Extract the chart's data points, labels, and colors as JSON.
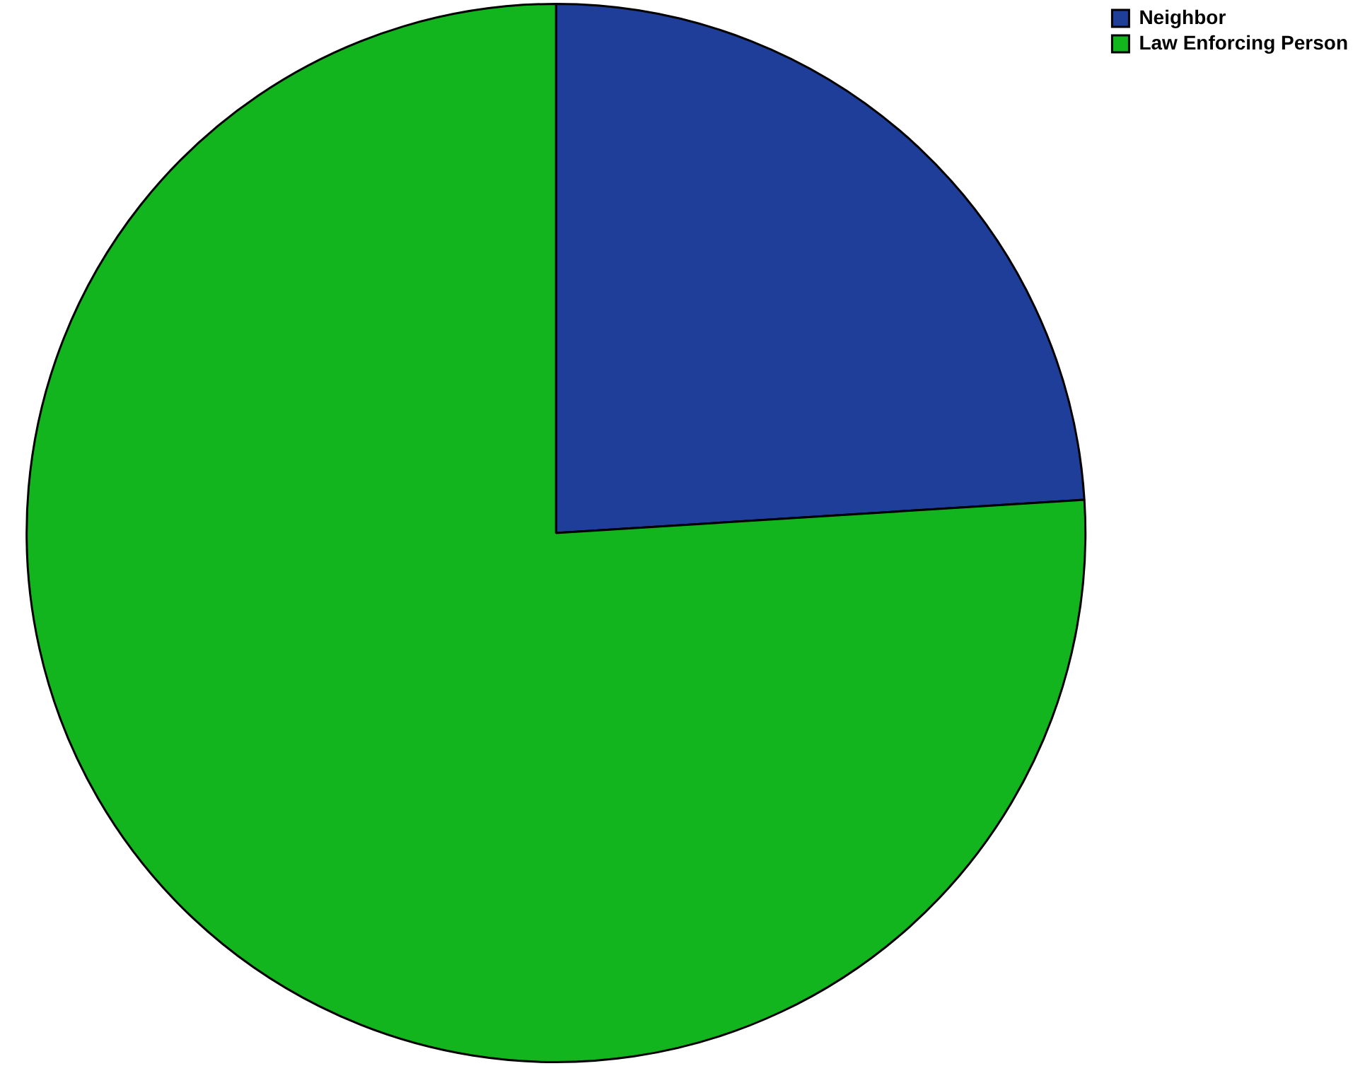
{
  "chart_data": {
    "type": "pie",
    "categories": [
      "Neighbor",
      "Law Enforcing Person"
    ],
    "values": [
      24,
      76
    ],
    "colors": [
      "#1e3e9a",
      "#12b51e"
    ],
    "legend": "top right"
  }
}
